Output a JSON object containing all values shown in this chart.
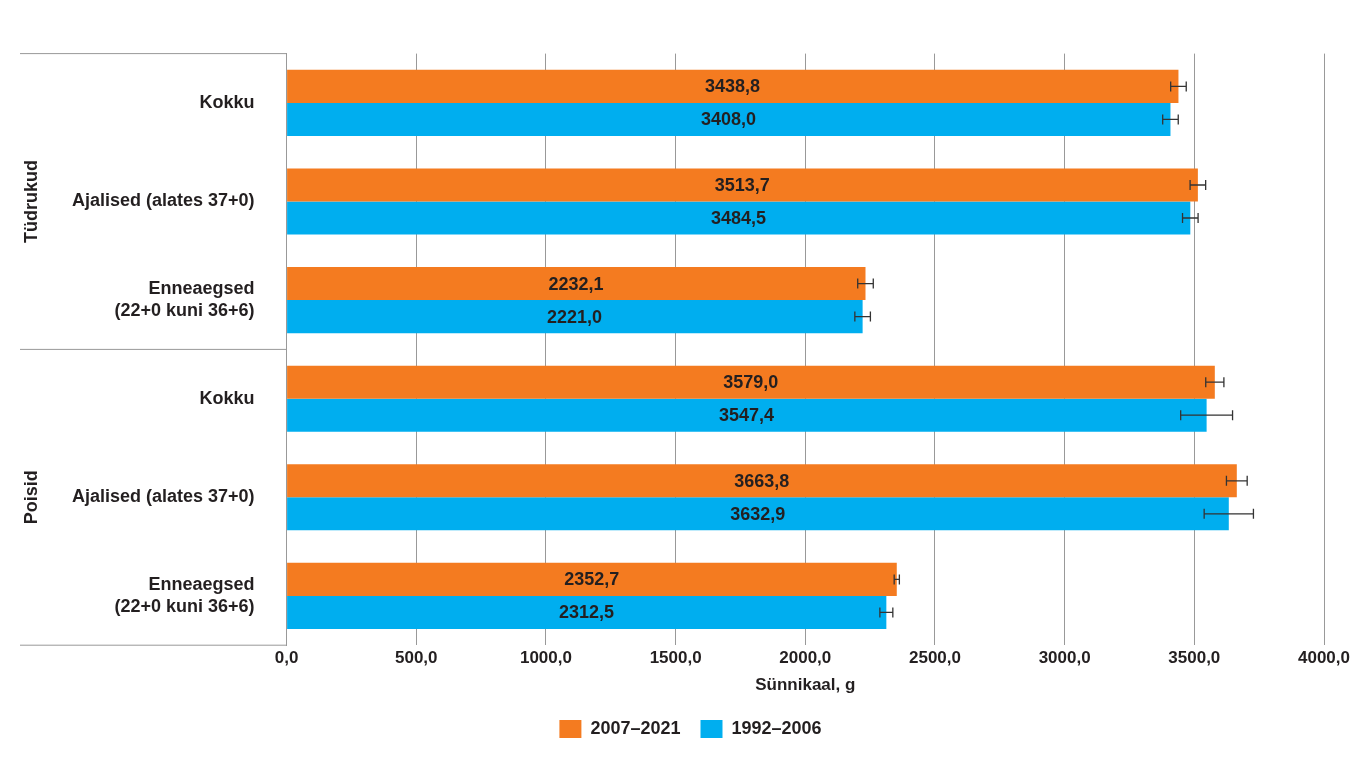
{
  "chart_data": {
    "type": "bar",
    "orientation": "horizontal",
    "xlabel": "Sünnikaal, g",
    "categories": [
      "Kokku",
      "Ajalised (alates 37+0)",
      "Enneaegsed\n(22+0 kuni 36+6)",
      "Kokku",
      "Ajalised (alates 37+0)",
      "Enneaegsed\n(22+0 kuni 36+6)"
    ],
    "annotations": [
      "Tüdrukud",
      "Poisid"
    ],
    "series": [
      {
        "name": "2007–2021",
        "color": "#f47b20",
        "values": [
          3438.8,
          3513.7,
          2232.1,
          3579.0,
          3663.8,
          2352.7
        ],
        "value_labels": [
          "3438,8",
          "3513,7",
          "2232,1",
          "3579,0",
          "3663,8",
          "2352,7"
        ],
        "errors": [
          30,
          30,
          30,
          35,
          40,
          10
        ]
      },
      {
        "name": "1992–2006",
        "color": "#00aeef",
        "values": [
          3408.0,
          3484.5,
          2221.0,
          3547.4,
          3632.9,
          2312.5
        ],
        "value_labels": [
          "3408,0",
          "3484,5",
          "2221,0",
          "3547,4",
          "3632,9",
          "2312,5"
        ],
        "errors": [
          30,
          30,
          30,
          100,
          95,
          25
        ]
      }
    ],
    "xlim": [
      0,
      4000
    ],
    "xticks": [
      {
        "value": 0,
        "label": "0,0"
      },
      {
        "value": 500,
        "label": "500,0"
      },
      {
        "value": 1000,
        "label": "1000,0"
      },
      {
        "value": 1500,
        "label": "1500,0"
      },
      {
        "value": 2000,
        "label": "2000,0"
      },
      {
        "value": 2500,
        "label": "2500,0"
      },
      {
        "value": 3000,
        "label": "3000,0"
      },
      {
        "value": 3500,
        "label": "3500,0"
      },
      {
        "value": 4000,
        "label": "4000,0"
      }
    ],
    "grid": "x",
    "legend": "bottom"
  }
}
